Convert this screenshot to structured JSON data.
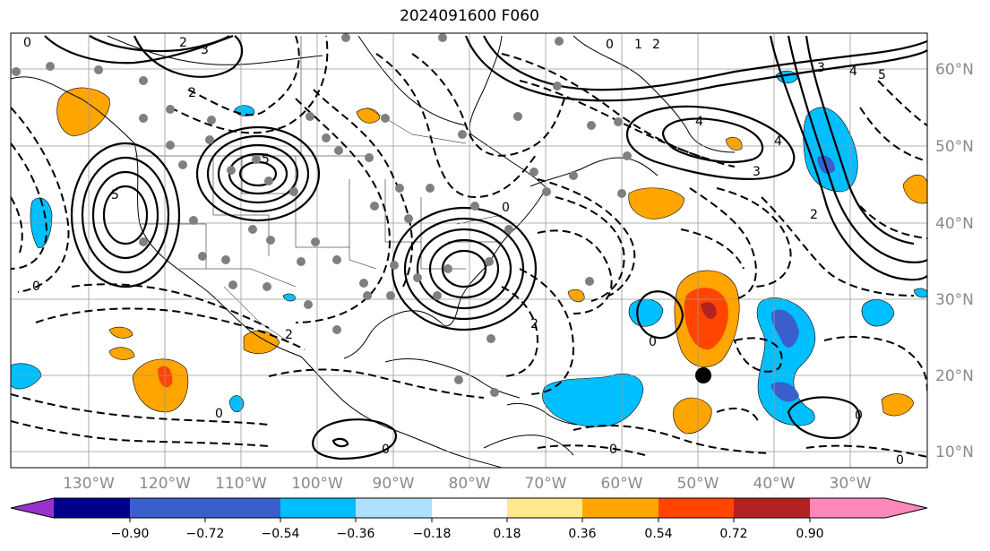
{
  "title": "2024091600 F060",
  "map": {
    "lat_labels": [
      "60°N",
      "50°N",
      "40°N",
      "30°N",
      "20°N",
      "10°N"
    ],
    "lon_labels": [
      "130°W",
      "120°W",
      "110°W",
      "100°W",
      "90°W",
      "80°W",
      "70°W",
      "60°W",
      "50°W",
      "40°W",
      "30°W"
    ],
    "contour_labels": [
      "0",
      "2",
      "3",
      "4",
      "5",
      "1",
      "2",
      "3",
      "4",
      "0",
      "2",
      "0",
      "0",
      "0",
      "3",
      "2",
      "0",
      "0",
      "4",
      "2",
      "5"
    ],
    "marker": "filled black circle",
    "dots_color": "#7f7f7f"
  },
  "colorbar": {
    "ticks": [
      "−0.90",
      "−0.72",
      "−0.54",
      "−0.36",
      "−0.18",
      "0.18",
      "0.36",
      "0.54",
      "0.72",
      "0.90"
    ],
    "colors": [
      "#9932cc",
      "#00008b",
      "#3a5fcd",
      "#00bfff",
      "#b0e0ff",
      "#ffffff",
      "#ffe98a",
      "#ffa500",
      "#ff4500",
      "#b22222",
      "#ff88bb"
    ]
  }
}
